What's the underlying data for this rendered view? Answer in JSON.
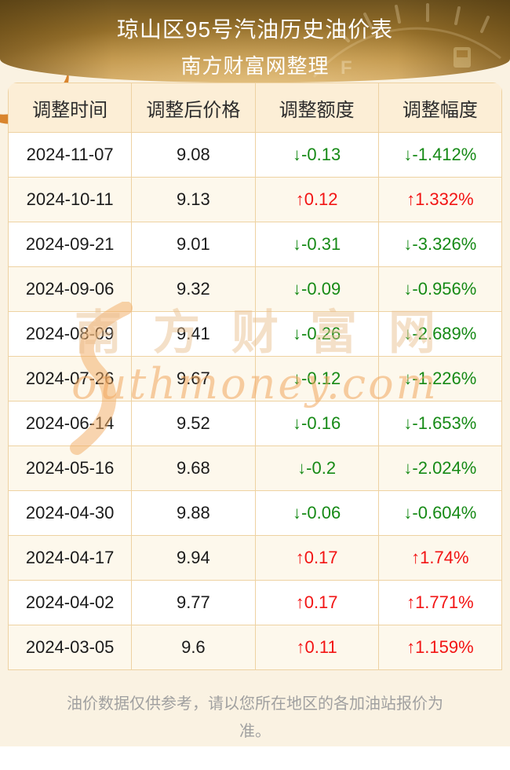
{
  "banner": {
    "title": "琼山区95号汽油历史油价表",
    "subtitle": "南方财富网整理"
  },
  "table": {
    "headers": [
      "调整时间",
      "调整后价格",
      "调整额度",
      "调整幅度"
    ],
    "rows": [
      {
        "date": "2024-11-07",
        "price": "9.08",
        "change": "↓-0.13",
        "change_pct": "↓-1.412%",
        "direction": "down"
      },
      {
        "date": "2024-10-11",
        "price": "9.13",
        "change": "↑0.12",
        "change_pct": "↑1.332%",
        "direction": "up"
      },
      {
        "date": "2024-09-21",
        "price": "9.01",
        "change": "↓-0.31",
        "change_pct": "↓-3.326%",
        "direction": "down"
      },
      {
        "date": "2024-09-06",
        "price": "9.32",
        "change": "↓-0.09",
        "change_pct": "↓-0.956%",
        "direction": "down"
      },
      {
        "date": "2024-08-09",
        "price": "9.41",
        "change": "↓-0.26",
        "change_pct": "↓-2.689%",
        "direction": "down"
      },
      {
        "date": "2024-07-26",
        "price": "9.67",
        "change": "↓-0.12",
        "change_pct": "↓-1.226%",
        "direction": "down"
      },
      {
        "date": "2024-06-14",
        "price": "9.52",
        "change": "↓-0.16",
        "change_pct": "↓-1.653%",
        "direction": "down"
      },
      {
        "date": "2024-05-16",
        "price": "9.68",
        "change": "↓-0.2",
        "change_pct": "↓-2.024%",
        "direction": "down"
      },
      {
        "date": "2024-04-30",
        "price": "9.88",
        "change": "↓-0.06",
        "change_pct": "↓-0.604%",
        "direction": "down"
      },
      {
        "date": "2024-04-17",
        "price": "9.94",
        "change": "↑0.17",
        "change_pct": "↑1.74%",
        "direction": "up"
      },
      {
        "date": "2024-04-02",
        "price": "9.77",
        "change": "↑0.17",
        "change_pct": "↑1.771%",
        "direction": "up"
      },
      {
        "date": "2024-03-05",
        "price": "9.6",
        "change": "↑0.11",
        "change_pct": "↑1.159%",
        "direction": "up"
      }
    ]
  },
  "watermark": {
    "cn": "南方财富网",
    "en": "outhmoney.com"
  },
  "footer": {
    "disclaimer": "油价数据仅供参考，请以您所在地区的各加油站报价为准。"
  },
  "colors": {
    "up_red": "#f21414",
    "down_green": "#168a16",
    "banner_gold": "#b98c3f",
    "page_cream": "#faf2e2",
    "header_peach": "#fceed6",
    "border_tan": "#eed2a2"
  }
}
